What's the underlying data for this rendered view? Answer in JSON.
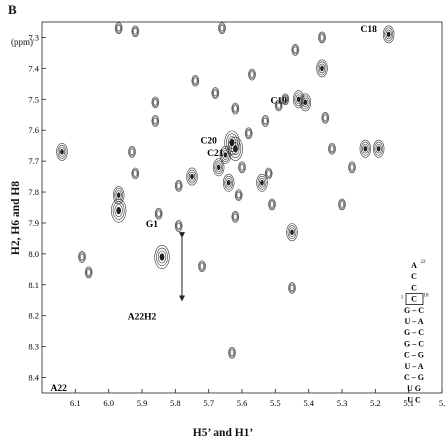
{
  "panel_label": "B",
  "chart_data": {
    "type": "scatter",
    "title": "",
    "xlabel": "H5’ and H1’",
    "ylabel": "H2, H6 and H8",
    "unit_label": "(ppm)",
    "x_reversed": true,
    "xlim": [
      6.2,
      5.0
    ],
    "ylim": [
      7.25,
      8.45
    ],
    "x_ticks": [
      "6.1",
      "6.0",
      "5.9",
      "5.8",
      "5.7",
      "5.6",
      "5.5",
      "5.4",
      "5.3",
      "5.2",
      "5.1",
      "5."
    ],
    "y_ticks": [
      "7.3",
      "7.4",
      "7.5",
      "7.6",
      "7.7",
      "7.8",
      "7.9",
      "8.0",
      "8.1",
      "8.2",
      "8.3",
      "8.4"
    ],
    "peaks": [
      {
        "x": 6.14,
        "y": 7.67,
        "w": 2
      },
      {
        "x": 6.08,
        "y": 8.01,
        "w": 1
      },
      {
        "x": 6.06,
        "y": 8.06,
        "w": 1
      },
      {
        "x": 5.97,
        "y": 7.86,
        "w": 3
      },
      {
        "x": 5.97,
        "y": 7.81,
        "w": 2
      },
      {
        "x": 5.97,
        "y": 7.27,
        "w": 1
      },
      {
        "x": 5.93,
        "y": 7.67,
        "w": 1
      },
      {
        "x": 5.92,
        "y": 7.74,
        "w": 1
      },
      {
        "x": 5.92,
        "y": 7.28,
        "w": 1
      },
      {
        "x": 5.86,
        "y": 7.51,
        "w": 1
      },
      {
        "x": 5.86,
        "y": 7.57,
        "w": 1
      },
      {
        "x": 5.85,
        "y": 7.87,
        "w": 1
      },
      {
        "x": 5.84,
        "y": 8.01,
        "w": 3
      },
      {
        "x": 5.79,
        "y": 7.78,
        "w": 1
      },
      {
        "x": 5.79,
        "y": 7.91,
        "w": 1
      },
      {
        "x": 5.74,
        "y": 7.44,
        "w": 1
      },
      {
        "x": 5.75,
        "y": 7.75,
        "w": 2
      },
      {
        "x": 5.72,
        "y": 8.04,
        "w": 1
      },
      {
        "x": 5.68,
        "y": 7.48,
        "w": 1
      },
      {
        "x": 5.67,
        "y": 7.72,
        "w": 2
      },
      {
        "x": 5.66,
        "y": 7.27,
        "w": 1
      },
      {
        "x": 5.65,
        "y": 7.68,
        "w": 2
      },
      {
        "x": 5.64,
        "y": 7.77,
        "w": 2
      },
      {
        "x": 5.63,
        "y": 7.64,
        "w": 3
      },
      {
        "x": 5.62,
        "y": 7.66,
        "w": 3
      },
      {
        "x": 5.61,
        "y": 7.81,
        "w": 1
      },
      {
        "x": 5.62,
        "y": 7.53,
        "w": 1
      },
      {
        "x": 5.62,
        "y": 7.88,
        "w": 1
      },
      {
        "x": 5.6,
        "y": 7.72,
        "w": 1
      },
      {
        "x": 5.63,
        "y": 8.32,
        "w": 1
      },
      {
        "x": 5.58,
        "y": 7.61,
        "w": 1
      },
      {
        "x": 5.57,
        "y": 7.42,
        "w": 1
      },
      {
        "x": 5.54,
        "y": 7.77,
        "w": 2
      },
      {
        "x": 5.53,
        "y": 7.57,
        "w": 1
      },
      {
        "x": 5.52,
        "y": 7.74,
        "w": 1
      },
      {
        "x": 5.51,
        "y": 7.84,
        "w": 1
      },
      {
        "x": 5.49,
        "y": 7.52,
        "w": 1
      },
      {
        "x": 5.47,
        "y": 7.5,
        "w": 1
      },
      {
        "x": 5.45,
        "y": 7.93,
        "w": 2
      },
      {
        "x": 5.44,
        "y": 7.34,
        "w": 1
      },
      {
        "x": 5.45,
        "y": 8.11,
        "w": 1
      },
      {
        "x": 5.43,
        "y": 7.5,
        "w": 2
      },
      {
        "x": 5.41,
        "y": 7.51,
        "w": 2
      },
      {
        "x": 5.36,
        "y": 7.4,
        "w": 2
      },
      {
        "x": 5.36,
        "y": 7.3,
        "w": 1
      },
      {
        "x": 5.35,
        "y": 7.56,
        "w": 1
      },
      {
        "x": 5.33,
        "y": 7.66,
        "w": 1
      },
      {
        "x": 5.3,
        "y": 7.84,
        "w": 1
      },
      {
        "x": 5.23,
        "y": 7.66,
        "w": 2
      },
      {
        "x": 5.19,
        "y": 7.66,
        "w": 2
      },
      {
        "x": 5.16,
        "y": 7.29,
        "w": 2
      },
      {
        "x": 5.27,
        "y": 7.72,
        "w": 1
      }
    ],
    "annotations": [
      {
        "text": "C18",
        "x": 5.22,
        "y": 7.27
      },
      {
        "text": "C19",
        "x": 5.49,
        "y": 7.5
      },
      {
        "text": "C20",
        "x": 5.7,
        "y": 7.63
      },
      {
        "text": "C21",
        "x": 5.68,
        "y": 7.67
      },
      {
        "text": "G1",
        "x": 5.87,
        "y": 7.9
      },
      {
        "text": "A22H2",
        "x": 5.9,
        "y": 8.2
      },
      {
        "text": "A22",
        "x": 6.15,
        "y": 8.43
      }
    ],
    "arrow": {
      "x": 5.78,
      "y1": 7.92,
      "y2": 8.17
    },
    "structure": {
      "sequence": [
        "A",
        "C",
        "C",
        "C",
        "G – C",
        "U – A",
        "G – C",
        "G – C",
        "C – G",
        "U – A",
        "C – G",
        "U G",
        "U C"
      ],
      "superscripts": [
        "22",
        "18",
        "1"
      ]
    }
  }
}
